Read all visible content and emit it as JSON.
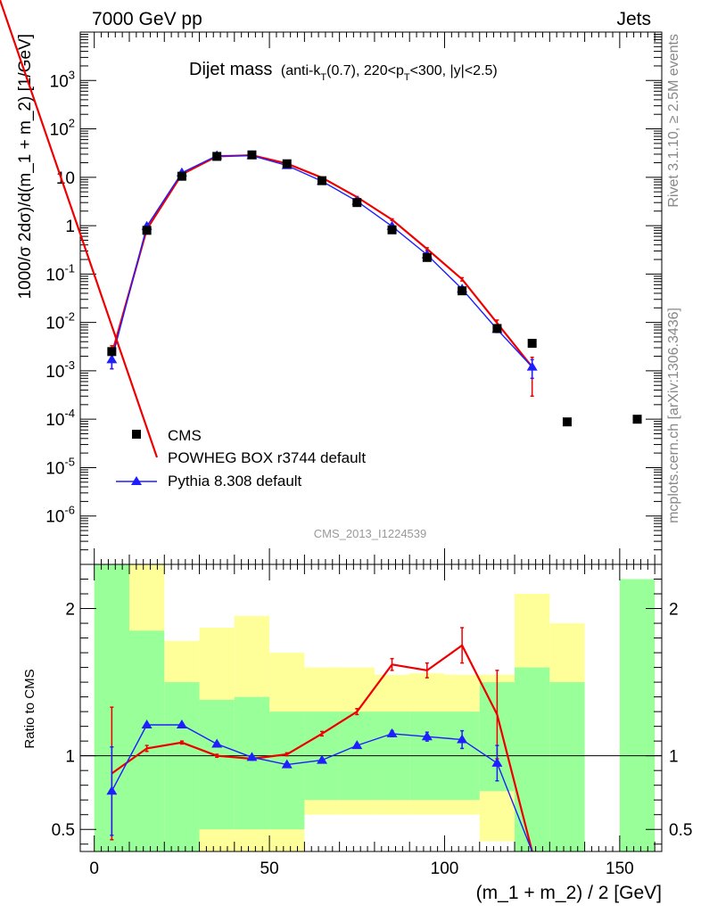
{
  "header": {
    "left": "7000 GeV pp",
    "right": "Jets",
    "watermark": "CMS_2013_I1224539",
    "side_top": "Rivet 3.1.10, ≥ 2.5M events",
    "side_bottom": "mcplots.cern.ch [arXiv:1306.3436]"
  },
  "chart_data": {
    "type": "line",
    "title": "Dijet mass",
    "subtitle": "(anti-k",
    "subtitle_sub1": "T",
    "subtitle_mid": "(0.7), 220<p",
    "subtitle_sub2": "T",
    "subtitle_end": "<300, |y|<2.5)",
    "xlabel": "(m_1 + m_2) / 2 [GeV]",
    "ylabel_main": "1000/σ 2dσ)/d(m_1 + m_2) [1/GeV]",
    "ylabel_ratio": "Ratio to CMS",
    "xlim": [
      -4,
      162
    ],
    "ylim_main_log10": [
      -7,
      4
    ],
    "ylim_ratio": [
      0.35,
      2.3
    ],
    "x_ticks": [
      "0",
      "50",
      "100",
      "150"
    ],
    "y_ticks_main": [
      "10^-6",
      "10^-5",
      "10^-4",
      "10^-3",
      "10^-2",
      "10^-1",
      "1",
      "10",
      "10^2",
      "10^3"
    ],
    "y_ticks_ratio": [
      "0.5",
      "1",
      "2"
    ],
    "legend": {
      "placement": "bottom-left"
    },
    "data": {
      "name": "CMS",
      "x": [
        5,
        15,
        25,
        35,
        45,
        55,
        65,
        75,
        85,
        95,
        105,
        115,
        125,
        135,
        155
      ],
      "y": [
        0.0025,
        0.8,
        10.5,
        27,
        29,
        19,
        8.5,
        3.0,
        0.82,
        0.22,
        0.045,
        0.0075,
        0.0037,
        8.8e-05,
        0.0001
      ]
    },
    "series": [
      {
        "name": "POWHEG BOX r3744 default",
        "color": "#ee0000",
        "marker": "none",
        "x": [
          5,
          15,
          25,
          35,
          45,
          55,
          65,
          75,
          85,
          95,
          105,
          115,
          125
        ],
        "y": [
          0.0022,
          0.84,
          11.5,
          27,
          28.5,
          19.2,
          9.8,
          3.9,
          1.33,
          0.33,
          0.078,
          0.0097,
          0.0012
        ],
        "yerr_low": [
          0.0011,
          0.03,
          0.2,
          0.3,
          0.3,
          0.3,
          0.15,
          0.1,
          0.05,
          0.02,
          0.006,
          0.0015,
          0.0009
        ],
        "yerr_high": [
          0.0011,
          0.03,
          0.2,
          0.3,
          0.3,
          0.3,
          0.15,
          0.1,
          0.05,
          0.02,
          0.006,
          0.0015,
          0.0007
        ],
        "ratio": [
          0.88,
          1.05,
          1.09,
          1.0,
          0.98,
          1.01,
          1.15,
          1.3,
          1.62,
          1.58,
          1.75,
          1.28,
          0.32
        ],
        "ratio_err": [
          0.45,
          0.02,
          0.01,
          0.01,
          0.01,
          0.01,
          0.015,
          0.02,
          0.04,
          0.05,
          0.12,
          0.3,
          0
        ]
      },
      {
        "name": "Pythia 8.308 default",
        "color": "#1e1eff",
        "marker": "triangle",
        "x": [
          5,
          15,
          25,
          35,
          45,
          55,
          65,
          75,
          85,
          95,
          105,
          115,
          125
        ],
        "y": [
          0.0017,
          0.97,
          12.4,
          28,
          28,
          17.5,
          8.3,
          3.2,
          0.97,
          0.25,
          0.049,
          0.0072,
          0.0012
        ],
        "yerr_low": [
          0.0006,
          0.03,
          0.2,
          0.3,
          0.3,
          0.3,
          0.15,
          0.08,
          0.04,
          0.015,
          0.004,
          0.001,
          0.0005
        ],
        "yerr_high": [
          0.0006,
          0.03,
          0.2,
          0.3,
          0.3,
          0.3,
          0.15,
          0.08,
          0.04,
          0.015,
          0.004,
          0.001,
          0.0005
        ],
        "ratio": [
          0.76,
          1.21,
          1.21,
          1.08,
          0.99,
          0.94,
          0.97,
          1.07,
          1.15,
          1.13,
          1.11,
          0.95,
          0.32
        ],
        "ratio_err": [
          0.3,
          0.01,
          0.01,
          0.01,
          0.01,
          0.01,
          0.01,
          0.01,
          0.02,
          0.03,
          0.06,
          0.12,
          0
        ]
      }
    ],
    "uncertainty_bands": {
      "bin_edges": [
        0,
        10,
        20,
        30,
        40,
        50,
        60,
        70,
        80,
        90,
        100,
        110,
        120,
        130,
        140,
        150,
        160
      ],
      "stat_color": "#99ff99",
      "total_color": "#ffff99",
      "stat": [
        [
          0.35,
          2.3
        ],
        [
          0.35,
          1.85
        ],
        [
          0.35,
          1.5
        ],
        [
          0.5,
          1.38
        ],
        [
          0.5,
          1.4
        ],
        [
          0.5,
          1.3
        ],
        [
          0.7,
          1.3
        ],
        [
          0.7,
          1.3
        ],
        [
          0.7,
          1.3
        ],
        [
          0.7,
          1.3
        ],
        [
          0.7,
          1.3
        ],
        [
          0.76,
          1.5
        ],
        [
          0.35,
          1.6
        ],
        [
          0.35,
          1.5
        ],
        null,
        [
          0.35,
          2.2
        ]
      ],
      "total": [
        [
          0.35,
          2.3
        ],
        [
          0.35,
          2.3
        ],
        [
          0.35,
          1.78
        ],
        [
          0.35,
          1.87
        ],
        [
          0.35,
          1.95
        ],
        [
          0.35,
          1.7
        ],
        [
          0.6,
          1.6
        ],
        [
          0.6,
          1.6
        ],
        [
          0.6,
          1.55
        ],
        [
          0.6,
          1.56
        ],
        [
          0.6,
          1.55
        ],
        [
          0.42,
          1.55
        ],
        [
          0.35,
          2.1
        ],
        [
          0.35,
          1.9
        ],
        null,
        [
          0.35,
          2.2
        ]
      ]
    }
  }
}
